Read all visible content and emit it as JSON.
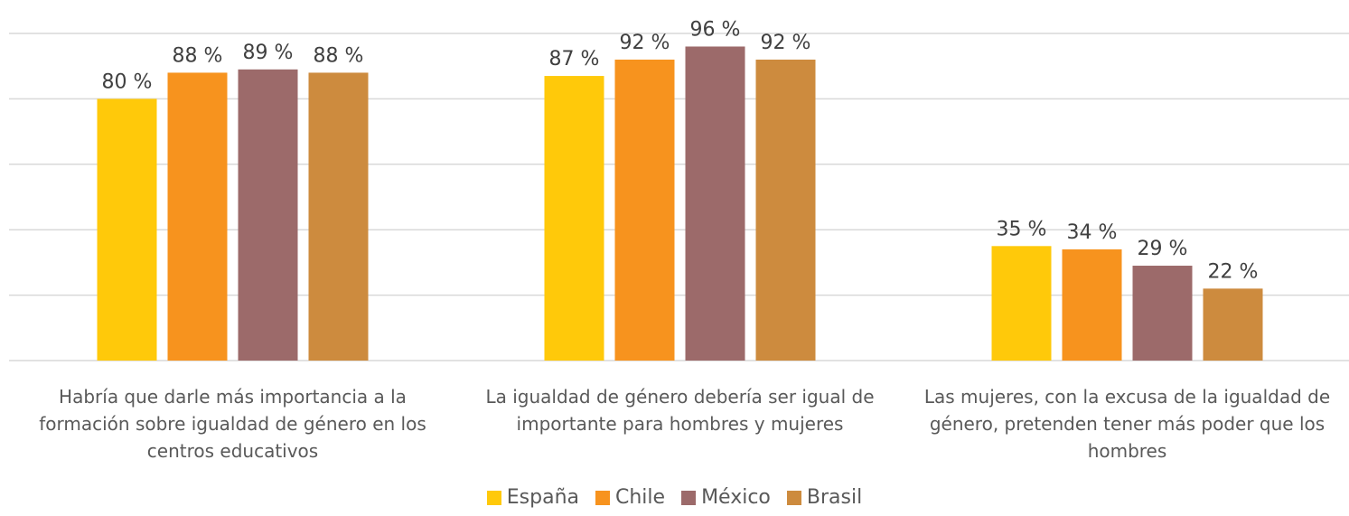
{
  "chart_data": {
    "type": "bar",
    "categories": [
      "Habría que darle más importancia a la formación sobre igualdad de género en los centros educativos",
      "La igualdad de género debería ser igual de importante para hombres y mujeres",
      "Las mujeres, con la excusa de la igualdad de género, pretenden tener más poder que los hombres"
    ],
    "series": [
      {
        "name": "España",
        "color": "#FFC90A",
        "values": [
          80,
          87,
          35
        ],
        "value_labels": [
          "80 %",
          "87 %",
          "35 %"
        ]
      },
      {
        "name": "Chile",
        "color": "#F7931E",
        "values": [
          88,
          92,
          34
        ],
        "value_labels": [
          "88 %",
          "92 %",
          "34 %"
        ]
      },
      {
        "name": "México",
        "color": "#9C6A6A",
        "values": [
          89,
          96,
          29
        ],
        "value_labels": [
          "89 %",
          "96 %",
          "29 %"
        ]
      },
      {
        "name": "Brasil",
        "color": "#CD8B3E",
        "values": [
          88,
          92,
          22
        ],
        "value_labels": [
          "88 %",
          "92 %",
          "22 %"
        ]
      }
    ],
    "ylim": [
      0,
      100
    ],
    "yticks": [
      0,
      20,
      40,
      60,
      80,
      100
    ],
    "grid": true,
    "legend": "bottom"
  }
}
